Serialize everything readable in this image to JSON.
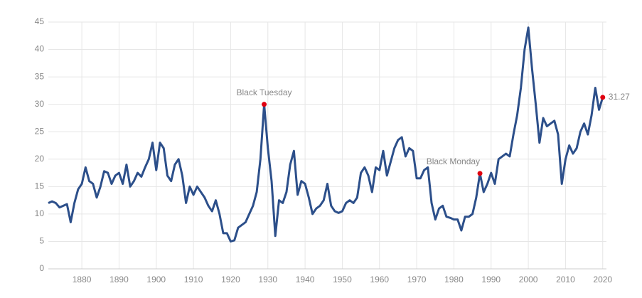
{
  "chart_data": {
    "type": "line",
    "x": [
      1871,
      1872,
      1873,
      1874,
      1875,
      1876,
      1877,
      1878,
      1879,
      1880,
      1881,
      1882,
      1883,
      1884,
      1885,
      1886,
      1887,
      1888,
      1889,
      1890,
      1891,
      1892,
      1893,
      1894,
      1895,
      1896,
      1897,
      1898,
      1899,
      1900,
      1901,
      1902,
      1903,
      1904,
      1905,
      1906,
      1907,
      1908,
      1909,
      1910,
      1911,
      1912,
      1913,
      1914,
      1915,
      1916,
      1917,
      1918,
      1919,
      1920,
      1921,
      1922,
      1923,
      1924,
      1925,
      1926,
      1927,
      1928,
      1929,
      1930,
      1931,
      1932,
      1933,
      1934,
      1935,
      1936,
      1937,
      1938,
      1939,
      1940,
      1941,
      1942,
      1943,
      1944,
      1945,
      1946,
      1947,
      1948,
      1949,
      1950,
      1951,
      1952,
      1953,
      1954,
      1955,
      1956,
      1957,
      1958,
      1959,
      1960,
      1961,
      1962,
      1963,
      1964,
      1965,
      1966,
      1967,
      1968,
      1969,
      1970,
      1971,
      1972,
      1973,
      1974,
      1975,
      1976,
      1977,
      1978,
      1979,
      1980,
      1981,
      1982,
      1983,
      1984,
      1985,
      1986,
      1987,
      1988,
      1989,
      1990,
      1991,
      1992,
      1993,
      1994,
      1995,
      1996,
      1997,
      1998,
      1999,
      2000,
      2001,
      2002,
      2003,
      2004,
      2005,
      2006,
      2007,
      2008,
      2009,
      2010,
      2011,
      2012,
      2013,
      2014,
      2015,
      2016,
      2017,
      2018,
      2019,
      2020
    ],
    "series": [
      {
        "color": "#2c4f8a",
        "values": [
          12,
          12.3,
          12,
          11.2,
          11.5,
          11.8,
          8.5,
          12,
          14.5,
          15.5,
          18.5,
          16,
          15.5,
          13,
          15,
          17.8,
          17.5,
          15.5,
          17,
          17.5,
          15.5,
          19,
          15,
          16,
          17.5,
          16.8,
          18.5,
          20,
          23,
          18,
          23,
          22,
          17,
          16,
          19,
          20,
          17,
          12,
          15,
          13.5,
          15,
          14,
          13,
          11.5,
          10.5,
          12.5,
          10,
          6.5,
          6.5,
          5,
          5.2,
          7.5,
          8,
          8.5,
          10,
          11.5,
          14,
          20,
          30,
          22,
          16,
          6,
          12.5,
          12,
          14,
          19,
          21.5,
          13.5,
          16,
          15.5,
          13,
          10,
          11,
          11.5,
          12.5,
          15.5,
          11.5,
          10.5,
          10.2,
          10.5,
          12,
          12.5,
          12,
          13,
          17.5,
          18.5,
          17,
          14,
          18.5,
          18,
          21.5,
          17,
          19.5,
          22,
          23.5,
          24,
          20.5,
          22,
          21.5,
          16.5,
          16.5,
          18,
          18.5,
          12,
          9,
          11,
          11.5,
          9.5,
          9.3,
          9,
          9,
          7,
          9.5,
          9.5,
          10,
          13,
          17.4,
          14,
          15.5,
          17.5,
          15.5,
          20,
          20.5,
          21,
          20.5,
          24.5,
          28,
          33,
          40,
          44,
          36.5,
          30,
          23,
          27.5,
          26,
          26.5,
          27,
          24.5,
          15.5,
          20,
          22.5,
          21,
          22,
          25,
          26.5,
          24.5,
          28,
          33,
          29,
          31.27
        ]
      }
    ],
    "markers": [
      {
        "label": "Black Tuesday",
        "x": 1929,
        "y": 30
      },
      {
        "label": "Black Monday",
        "x": 1987,
        "y": 17.4
      },
      {
        "x": 2020,
        "y": 31.27
      }
    ],
    "marker_color": "#e0000f",
    "xlim": [
      1871,
      2021
    ],
    "xticks": [
      1880,
      1890,
      1900,
      1910,
      1920,
      1930,
      1940,
      1950,
      1960,
      1970,
      1980,
      1990,
      2000,
      2010,
      2020
    ],
    "ylim": [
      0,
      45
    ],
    "yticks": [
      0,
      5,
      10,
      15,
      20,
      25,
      30,
      35,
      40,
      45
    ],
    "grid": true
  }
}
